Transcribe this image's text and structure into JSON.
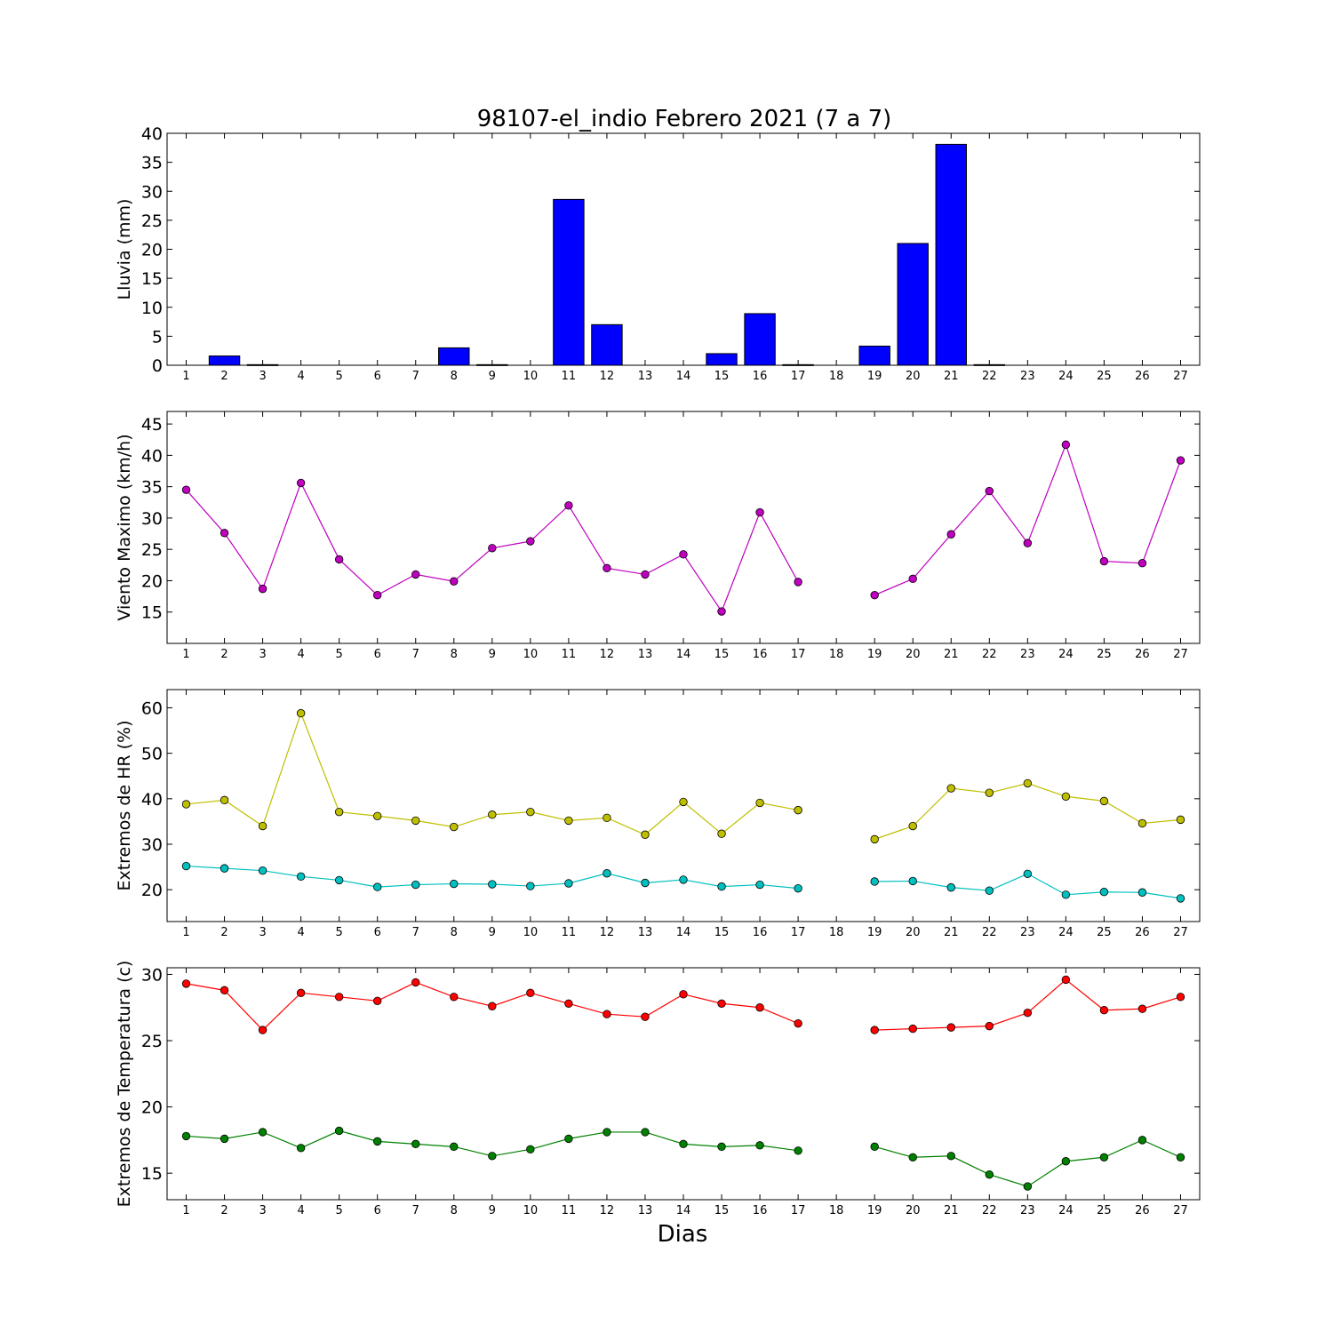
{
  "title": "98107-el_indio Febrero 2021  (7 a 7)",
  "xlabel": "Dias",
  "chart_data": [
    {
      "type": "bar",
      "ylabel": "Lluvia (mm)",
      "x": [
        1,
        2,
        3,
        4,
        5,
        6,
        7,
        8,
        9,
        10,
        11,
        12,
        13,
        14,
        15,
        16,
        17,
        18,
        19,
        20,
        21,
        22,
        23,
        24,
        25,
        26,
        27
      ],
      "values": [
        0,
        1.6,
        0.1,
        0,
        0,
        0,
        0,
        3,
        0.1,
        0,
        28.6,
        7,
        0,
        0,
        2,
        8.9,
        0.1,
        0,
        3.3,
        21,
        38.1,
        0.1,
        0,
        0,
        0,
        0,
        0
      ],
      "ylim": [
        0,
        40
      ],
      "yticks": [
        0,
        5,
        10,
        15,
        20,
        25,
        30,
        35,
        40
      ],
      "color": "#0000ff"
    },
    {
      "type": "line",
      "ylabel": "Viento Maximo (km/h)",
      "x": [
        1,
        2,
        3,
        4,
        5,
        6,
        7,
        8,
        9,
        10,
        11,
        12,
        13,
        14,
        15,
        16,
        17,
        18,
        19,
        20,
        21,
        22,
        23,
        24,
        25,
        26,
        27
      ],
      "series": [
        {
          "color": "#bf00bf",
          "values": [
            34.5,
            27.6,
            18.7,
            35.6,
            23.4,
            17.7,
            21,
            19.9,
            25.2,
            26.3,
            32,
            22,
            21,
            24.2,
            15.1,
            30.9,
            19.8,
            null,
            17.7,
            20.3,
            27.4,
            34.3,
            26,
            41.7,
            23.1,
            22.8,
            39.2
          ]
        }
      ],
      "ylim": [
        10,
        47
      ],
      "yticks": [
        15,
        20,
        25,
        30,
        35,
        40,
        45
      ]
    },
    {
      "type": "line",
      "ylabel": "Extremos de HR (%)",
      "x": [
        1,
        2,
        3,
        4,
        5,
        6,
        7,
        8,
        9,
        10,
        11,
        12,
        13,
        14,
        15,
        16,
        17,
        18,
        19,
        20,
        21,
        22,
        23,
        24,
        25,
        26,
        27
      ],
      "series": [
        {
          "color": "#bfbf00",
          "values": [
            38.8,
            39.7,
            34,
            58.8,
            37.1,
            36.2,
            35.2,
            33.8,
            36.5,
            37.1,
            35.2,
            35.8,
            32.1,
            39.3,
            32.3,
            39.1,
            37.5,
            null,
            31.1,
            34,
            42.3,
            41.3,
            43.4,
            40.5,
            39.5,
            34.6,
            35.4
          ]
        },
        {
          "color": "#00bfbf",
          "values": [
            25.2,
            24.7,
            24.2,
            22.9,
            22.1,
            20.6,
            21.1,
            21.3,
            21.2,
            20.8,
            21.4,
            23.6,
            21.5,
            22.2,
            20.7,
            21.1,
            20.3,
            null,
            21.8,
            21.9,
            20.5,
            19.8,
            23.5,
            18.9,
            19.5,
            19.4,
            18.1
          ]
        }
      ],
      "ylim": [
        13,
        64
      ],
      "yticks": [
        20,
        30,
        40,
        50,
        60
      ]
    },
    {
      "type": "line",
      "ylabel": "Extremos de Temperatura (c)",
      "x": [
        1,
        2,
        3,
        4,
        5,
        6,
        7,
        8,
        9,
        10,
        11,
        12,
        13,
        14,
        15,
        16,
        17,
        18,
        19,
        20,
        21,
        22,
        23,
        24,
        25,
        26,
        27
      ],
      "series": [
        {
          "color": "#ff0000",
          "values": [
            29.3,
            28.8,
            25.8,
            28.6,
            28.3,
            28,
            29.4,
            28.3,
            27.6,
            28.6,
            27.8,
            27,
            26.8,
            28.5,
            27.8,
            27.5,
            26.3,
            null,
            25.8,
            25.9,
            26,
            26.1,
            27.1,
            29.6,
            27.3,
            27.4,
            28.3
          ]
        },
        {
          "color": "#008000",
          "values": [
            17.8,
            17.6,
            18.1,
            16.9,
            18.2,
            17.4,
            17.2,
            17,
            16.3,
            16.8,
            17.6,
            18.1,
            18.1,
            17.2,
            17,
            17.1,
            16.7,
            null,
            17,
            16.2,
            16.3,
            14.9,
            14,
            15.9,
            16.2,
            17.5,
            16.2
          ]
        }
      ],
      "ylim": [
        13,
        30.5
      ],
      "yticks": [
        15,
        20,
        25,
        30
      ]
    }
  ]
}
